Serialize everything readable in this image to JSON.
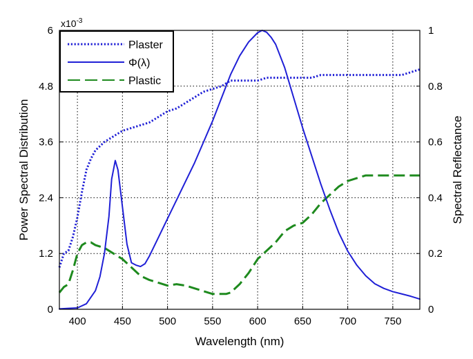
{
  "chart_data": {
    "type": "line",
    "xlabel": "Wavelength (nm)",
    "ylabel_left": "Power Spectral Distribution",
    "ylabel_right": "Spectral Reflectance",
    "left_axis_multiplier": "x10",
    "left_axis_exponent": "-3",
    "xlim": [
      380,
      780
    ],
    "ylim_left": [
      0,
      6
    ],
    "ylim_right": [
      0,
      1
    ],
    "x_ticks": [
      400,
      450,
      500,
      550,
      600,
      650,
      700,
      750
    ],
    "x_tick_labels": [
      "400",
      "450",
      "500",
      "550",
      "600",
      "650",
      "700",
      "750"
    ],
    "y_left_ticks": [
      0,
      1.2,
      2.4,
      3.6,
      4.8,
      6
    ],
    "y_left_tick_labels": [
      "0",
      "1.2",
      "2.4",
      "3.6",
      "4.8",
      "6"
    ],
    "y_right_ticks": [
      0,
      0.2,
      0.4,
      0.6,
      0.8,
      1.0
    ],
    "y_right_tick_labels": [
      "0",
      "0.2",
      "0.4",
      "0.6",
      "0.8",
      "1"
    ],
    "grid": true,
    "legend_position": "top-left",
    "series": [
      {
        "name": "Plaster",
        "axis": "right",
        "color": "#1f1fd6",
        "style": "dotted",
        "x": [
          380,
          385,
          390,
          395,
          400,
          405,
          410,
          415,
          420,
          430,
          440,
          450,
          460,
          470,
          480,
          490,
          500,
          510,
          520,
          530,
          540,
          550,
          560,
          570,
          580,
          590,
          600,
          610,
          620,
          630,
          640,
          650,
          660,
          670,
          680,
          690,
          700,
          710,
          720,
          730,
          740,
          750,
          760,
          770,
          780
        ],
        "values": [
          0.15,
          0.2,
          0.21,
          0.26,
          0.33,
          0.42,
          0.5,
          0.54,
          0.57,
          0.6,
          0.62,
          0.64,
          0.65,
          0.66,
          0.67,
          0.69,
          0.71,
          0.72,
          0.74,
          0.76,
          0.78,
          0.79,
          0.8,
          0.82,
          0.82,
          0.82,
          0.82,
          0.83,
          0.83,
          0.83,
          0.83,
          0.83,
          0.83,
          0.84,
          0.84,
          0.84,
          0.84,
          0.84,
          0.84,
          0.84,
          0.84,
          0.84,
          0.84,
          0.85,
          0.86
        ]
      },
      {
        "name": "Φ(λ)",
        "axis": "left",
        "color": "#1f1fd6",
        "style": "solid",
        "x": [
          380,
          390,
          400,
          410,
          420,
          425,
          430,
          435,
          438,
          442,
          445,
          450,
          455,
          460,
          465,
          470,
          475,
          480,
          490,
          500,
          510,
          520,
          530,
          540,
          550,
          560,
          570,
          580,
          590,
          600,
          605,
          610,
          615,
          620,
          630,
          640,
          650,
          660,
          670,
          680,
          690,
          700,
          710,
          720,
          730,
          740,
          750,
          760,
          770,
          780
        ],
        "values": [
          0.01,
          0.02,
          0.03,
          0.12,
          0.4,
          0.7,
          1.2,
          2.0,
          2.8,
          3.2,
          3.0,
          2.2,
          1.4,
          1.0,
          0.95,
          0.92,
          0.98,
          1.15,
          1.55,
          1.95,
          2.35,
          2.75,
          3.15,
          3.6,
          4.05,
          4.55,
          5.05,
          5.45,
          5.75,
          5.95,
          6.0,
          5.96,
          5.85,
          5.7,
          5.2,
          4.55,
          3.9,
          3.3,
          2.7,
          2.15,
          1.65,
          1.25,
          0.95,
          0.72,
          0.55,
          0.45,
          0.38,
          0.33,
          0.28,
          0.22
        ]
      },
      {
        "name": "Plastic",
        "axis": "right",
        "color": "#1e8a1e",
        "style": "dashed",
        "x": [
          380,
          385,
          390,
          395,
          400,
          405,
          410,
          415,
          420,
          430,
          440,
          450,
          460,
          470,
          480,
          490,
          500,
          510,
          520,
          530,
          540,
          550,
          555,
          560,
          565,
          570,
          580,
          590,
          600,
          610,
          620,
          630,
          640,
          650,
          660,
          670,
          680,
          690,
          700,
          710,
          720,
          730,
          740,
          750,
          760,
          770,
          780
        ],
        "values": [
          0.06,
          0.08,
          0.09,
          0.14,
          0.2,
          0.23,
          0.24,
          0.24,
          0.23,
          0.22,
          0.2,
          0.18,
          0.15,
          0.12,
          0.105,
          0.095,
          0.085,
          0.09,
          0.085,
          0.075,
          0.065,
          0.055,
          0.055,
          0.055,
          0.055,
          0.06,
          0.09,
          0.13,
          0.18,
          0.21,
          0.24,
          0.28,
          0.3,
          0.31,
          0.34,
          0.38,
          0.41,
          0.44,
          0.46,
          0.47,
          0.48,
          0.48,
          0.48,
          0.48,
          0.48,
          0.48,
          0.48
        ]
      }
    ]
  }
}
